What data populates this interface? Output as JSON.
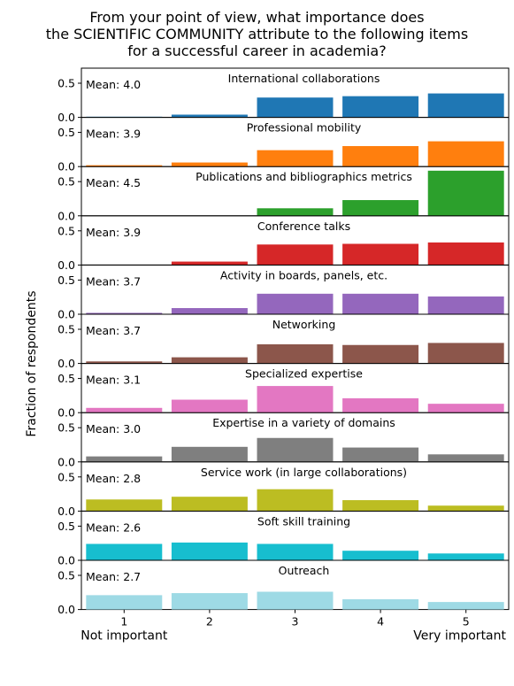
{
  "title_lines": [
    "From your point of view, what importance does",
    "the SCIENTIFIC COMMUNITY attribute to the following items",
    "for a successful career in academia?"
  ],
  "chart_data": {
    "type": "bar",
    "ylabel": "Fraction of respondents",
    "categories": [
      "1",
      "2",
      "3",
      "4",
      "5"
    ],
    "x_end_labels": {
      "left": "Not important",
      "right": "Very important"
    },
    "grid": false,
    "panels": [
      {
        "name": "International collaborations",
        "mean_label": "Mean: 4.0",
        "color": "#1f77b4",
        "values": [
          0.01,
          0.04,
          0.29,
          0.31,
          0.35
        ],
        "ylim": [
          0,
          0.72
        ],
        "yticks": [
          "0.0",
          "0.5"
        ]
      },
      {
        "name": "Professional mobility",
        "mean_label": "Mean: 3.9",
        "color": "#ff7f0e",
        "values": [
          0.02,
          0.06,
          0.24,
          0.3,
          0.37
        ],
        "ylim": [
          0,
          0.72
        ],
        "yticks": [
          "0.0",
          "0.5"
        ]
      },
      {
        "name": "Publications and bibliographics metrics",
        "mean_label": "Mean: 4.5",
        "color": "#2ca02c",
        "values": [
          0.0,
          0.0,
          0.11,
          0.23,
          0.66
        ],
        "ylim": [
          0,
          0.72
        ],
        "yticks": [
          "0.0",
          "0.5"
        ]
      },
      {
        "name": "Conference talks",
        "mean_label": "Mean: 3.9",
        "color": "#d62728",
        "values": [
          0.0,
          0.05,
          0.3,
          0.31,
          0.33
        ],
        "ylim": [
          0,
          0.72
        ],
        "yticks": [
          "0.0",
          "0.5"
        ]
      },
      {
        "name": "Activity in boards, panels, etc.",
        "mean_label": "Mean: 3.7",
        "color": "#9467bd",
        "values": [
          0.02,
          0.09,
          0.3,
          0.3,
          0.26
        ],
        "ylim": [
          0,
          0.72
        ],
        "yticks": [
          "0.0",
          "0.5"
        ]
      },
      {
        "name": "Networking",
        "mean_label": "Mean: 3.7",
        "color": "#8c564b",
        "values": [
          0.03,
          0.09,
          0.28,
          0.27,
          0.3
        ],
        "ylim": [
          0,
          0.72
        ],
        "yticks": [
          "0.0",
          "0.5"
        ]
      },
      {
        "name": "Specialized expertise",
        "mean_label": "Mean: 3.1",
        "color": "#e377c2",
        "values": [
          0.07,
          0.19,
          0.39,
          0.21,
          0.13
        ],
        "ylim": [
          0,
          0.72
        ],
        "yticks": [
          "0.0",
          "0.5"
        ]
      },
      {
        "name": "Expertise in a variety of domains",
        "mean_label": "Mean: 3.0",
        "color": "#7f7f7f",
        "values": [
          0.08,
          0.22,
          0.35,
          0.21,
          0.11
        ],
        "ylim": [
          0,
          0.72
        ],
        "yticks": [
          "0.0",
          "0.5"
        ]
      },
      {
        "name": "Service work (in large collaborations)",
        "mean_label": "Mean: 2.8",
        "color": "#bcbd22",
        "values": [
          0.17,
          0.21,
          0.32,
          0.16,
          0.08
        ],
        "ylim": [
          0,
          0.72
        ],
        "yticks": [
          "0.0",
          "0.5"
        ]
      },
      {
        "name": "Soft skill training",
        "mean_label": "Mean: 2.6",
        "color": "#17becf",
        "values": [
          0.24,
          0.26,
          0.24,
          0.14,
          0.1
        ],
        "ylim": [
          0,
          0.72
        ],
        "yticks": [
          "0.0",
          "0.5"
        ]
      },
      {
        "name": "Outreach",
        "mean_label": "Mean: 2.7",
        "color": "#9edae5",
        "values": [
          0.21,
          0.24,
          0.26,
          0.15,
          0.11
        ],
        "ylim": [
          0,
          0.72
        ],
        "yticks": [
          "0.0",
          "0.5"
        ]
      }
    ]
  }
}
